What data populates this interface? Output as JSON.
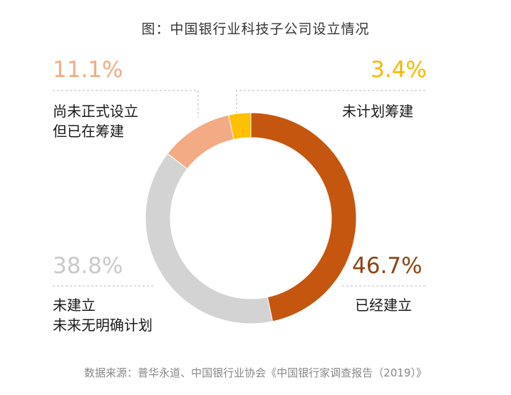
{
  "chart_data": {
    "type": "pie",
    "title": "图：中国银行业科技子公司设立情况",
    "slices": [
      {
        "value": 46.7,
        "value_label": "46.7%",
        "label_lines": [
          "已经建立"
        ],
        "color": "#C4560F",
        "label_color": "#8B4513"
      },
      {
        "value": 38.8,
        "value_label": "38.8%",
        "label_lines": [
          "未建立",
          "未来无明确计划"
        ],
        "color": "#D3D3D3",
        "label_color": "#C9C9C9"
      },
      {
        "value": 11.1,
        "value_label": "11.1%",
        "label_lines": [
          "尚未正式设立",
          "但已在筹建"
        ],
        "color": "#F2AB84",
        "label_color": "#F2AB84"
      },
      {
        "value": 3.4,
        "value_label": "3.4%",
        "label_lines": [
          "未计划筹建"
        ],
        "color": "#FFC000",
        "label_color": "#F5B800"
      }
    ],
    "source": "数据来源：普华永道、中国银行业协会《中国银行家调查报告（2019）》"
  }
}
